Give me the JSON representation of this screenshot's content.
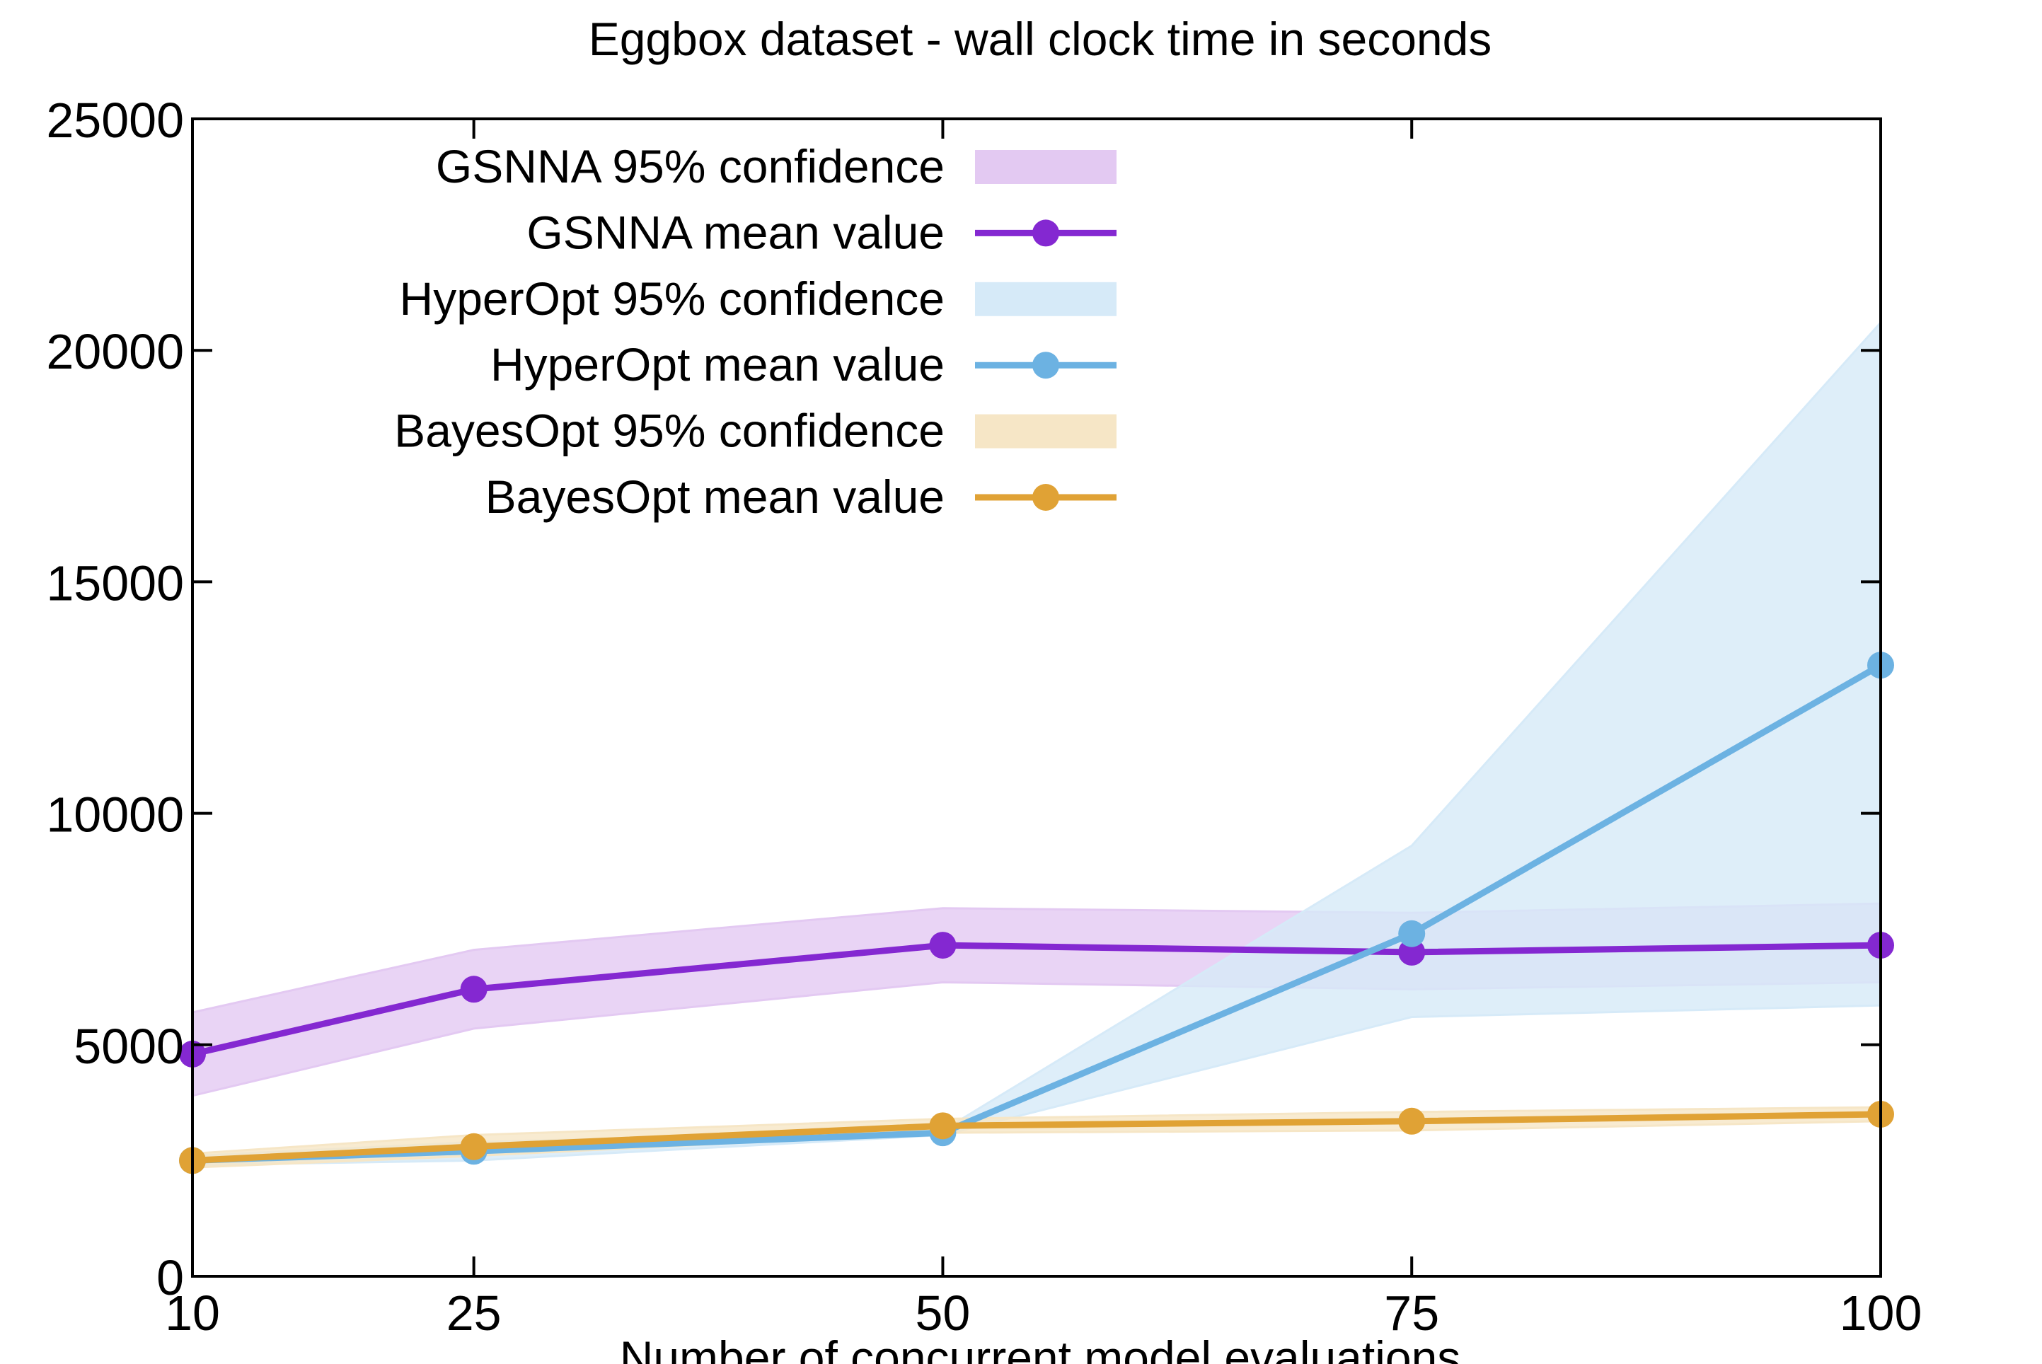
{
  "chart_data": {
    "type": "line",
    "title": "Eggbox dataset - wall clock time in seconds",
    "xlabel": "Number of concurrent model evaluations",
    "ylabel": "",
    "x": [
      10,
      25,
      50,
      75,
      100
    ],
    "xticks": [
      "10",
      "25",
      "50",
      "75",
      "100"
    ],
    "yticks": [
      "0",
      "5000",
      "10000",
      "15000",
      "20000",
      "25000"
    ],
    "xlim": [
      10,
      100
    ],
    "ylim": [
      0,
      25000
    ],
    "grid": false,
    "legend_position": "top-left",
    "series": [
      {
        "name": "GSNNA mean value",
        "band_name": "GSNNA 95% confidence",
        "color": "#8428d1",
        "band_color": "#e3c9f2",
        "values": [
          4800,
          6200,
          7150,
          7000,
          7150
        ],
        "lower": [
          3900,
          5350,
          6350,
          6200,
          6350
        ],
        "upper": [
          5700,
          7050,
          7950,
          7850,
          8050
        ]
      },
      {
        "name": "HyperOpt mean value",
        "band_name": "HyperOpt 95% confidence",
        "color": "#6cb2e2",
        "band_color": "#d6eaf8",
        "values": [
          2500,
          2700,
          3100,
          7400,
          13200
        ],
        "lower": [
          2400,
          2500,
          3050,
          5600,
          5850
        ],
        "upper": [
          2600,
          2900,
          3150,
          9300,
          20600
        ]
      },
      {
        "name": "BayesOpt mean value",
        "band_name": "BayesOpt 95% confidence",
        "color": "#e0a235",
        "band_color": "#f6e6c6",
        "values": [
          2500,
          2800,
          3250,
          3350,
          3500
        ],
        "lower": [
          2350,
          2600,
          3100,
          3150,
          3350
        ],
        "upper": [
          2650,
          3050,
          3400,
          3550,
          3650
        ]
      }
    ]
  }
}
